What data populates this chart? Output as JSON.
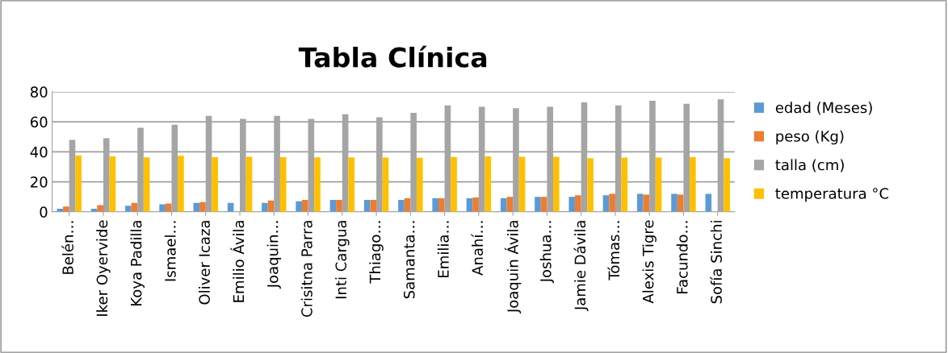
{
  "chart_data": {
    "type": "bar",
    "title": "Tabla Clínica",
    "categories": [
      "Belén…",
      "Iker Oyervide",
      "Koya Padilla",
      "Ismael…",
      "Oliver Icaza",
      "Emilio Ávila",
      "Joaquin…",
      "Crisitna Parra",
      "Inti Cargua",
      "Thiago…",
      "Samanta…",
      "Emilia…",
      "Anahí…",
      "Joaquin Ávila",
      "Joshua…",
      "Jamie Dávila",
      "Tómas…",
      "Alexis Tigre",
      "Facundo…",
      "Sofía Sinchi"
    ],
    "series": [
      {
        "name": "edad (Meses)",
        "color": "#5b9bd5",
        "values": [
          2,
          2,
          4,
          5,
          6,
          6,
          6,
          7,
          8,
          8,
          8,
          9,
          9,
          9,
          10,
          10,
          11,
          12,
          12,
          12
        ]
      },
      {
        "name": "peso (Kg)",
        "color": "#ed7d31",
        "values": [
          3.5,
          4.5,
          6,
          5.5,
          6.5,
          null,
          7.5,
          8,
          8,
          8,
          9,
          9,
          9.5,
          10,
          10,
          11,
          12,
          11.5,
          11.5,
          null
        ]
      },
      {
        "name": "talla (cm)",
        "color": "#a5a5a5",
        "values": [
          48,
          49,
          56,
          58,
          64,
          62,
          64,
          62,
          65,
          63,
          66,
          71,
          70,
          69,
          70,
          73,
          71,
          74,
          72,
          75
        ]
      },
      {
        "name": "temperatura °C",
        "color": "#ffc000",
        "values": [
          37.5,
          37,
          36.3,
          37.3,
          36.4,
          36.7,
          36.4,
          36.3,
          36.3,
          36.2,
          36,
          36.5,
          37,
          36.7,
          36.7,
          35.8,
          36.2,
          36.2,
          36.4,
          35.7
        ]
      }
    ],
    "ylim": [
      0,
      80
    ],
    "yticks": [
      0,
      20,
      40,
      60,
      80
    ],
    "grid": "y",
    "legend": "right"
  }
}
